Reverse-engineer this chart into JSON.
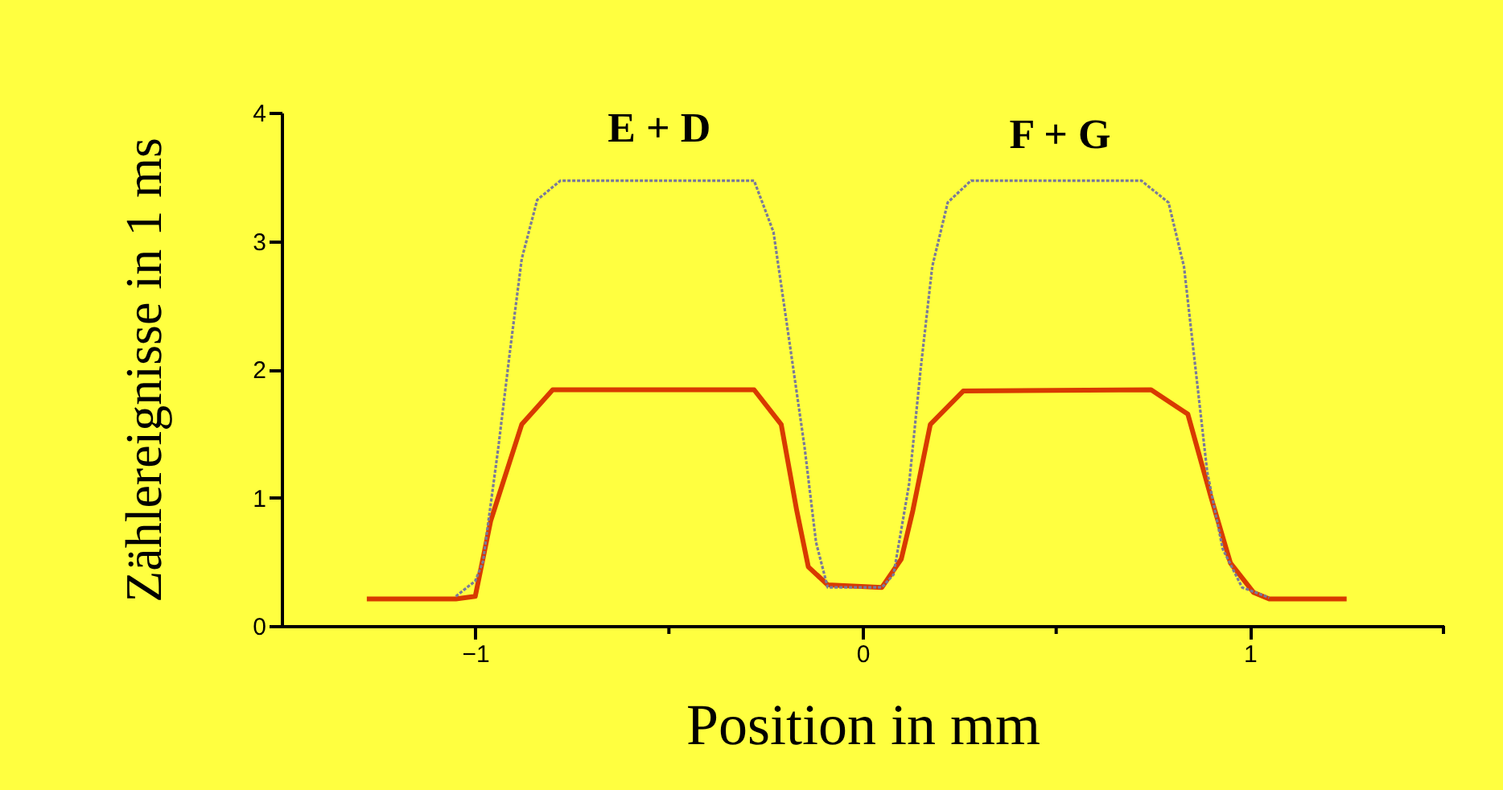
{
  "chart_data": {
    "type": "line",
    "xlabel": "Position in mm",
    "ylabel": "Zählereignisse in 1 ms",
    "xlim": [
      -1.5,
      1.5
    ],
    "xticks": [
      -1,
      {
        "value": -0.5,
        "label": null
      },
      0,
      {
        "value": 0.5,
        "label": null
      },
      1,
      {
        "value": 1.5,
        "label": null
      }
    ],
    "ylim": [
      0,
      4
    ],
    "yticks": [
      0,
      1,
      2,
      3,
      4
    ],
    "grid": false,
    "marker": "none",
    "series": [
      {
        "color": "#7a7a99",
        "line_style": "dotted",
        "x": [
          -1.05,
          -1.0,
          -0.98,
          -0.94,
          -0.91,
          -0.88,
          -0.84,
          -0.78,
          -0.28,
          -0.23,
          -0.19,
          -0.15,
          -0.12,
          -0.09,
          0.05,
          0.08,
          0.12,
          0.15,
          0.18,
          0.22,
          0.28,
          0.72,
          0.79,
          0.83,
          0.86,
          0.89,
          0.93,
          0.98,
          1.05
        ],
        "values": [
          0.23,
          0.35,
          0.5,
          1.4,
          2.15,
          2.86,
          3.32,
          3.47,
          3.47,
          3.07,
          2.24,
          1.4,
          0.65,
          0.3,
          0.3,
          0.4,
          1.1,
          2.0,
          2.8,
          3.3,
          3.47,
          3.47,
          3.3,
          2.8,
          2.0,
          1.2,
          0.6,
          0.3,
          0.22
        ]
      },
      {
        "color": "#d83a00",
        "line_style": "solid",
        "x": [
          -1.28,
          -1.05,
          -1.0,
          -0.96,
          -0.88,
          -0.8,
          -0.28,
          -0.21,
          -0.17,
          -0.14,
          -0.09,
          0.05,
          0.1,
          0.13,
          0.175,
          0.26,
          0.745,
          0.84,
          0.9,
          0.95,
          1.01,
          1.05,
          1.25
        ],
        "values": [
          0.21,
          0.21,
          0.23,
          0.82,
          1.57,
          1.84,
          1.84,
          1.57,
          0.9,
          0.46,
          0.32,
          0.3,
          0.52,
          0.9,
          1.57,
          1.83,
          1.84,
          1.65,
          1.0,
          0.49,
          0.26,
          0.21,
          0.21
        ]
      }
    ],
    "annotations": [
      "E + D",
      "F + G"
    ]
  }
}
